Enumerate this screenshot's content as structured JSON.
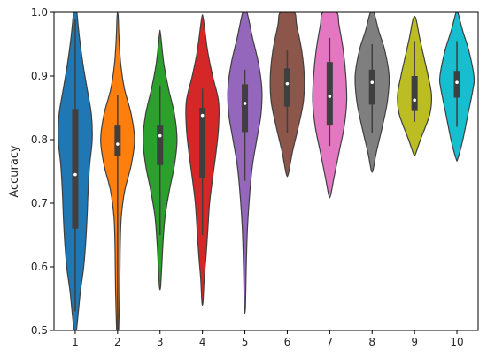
{
  "chart_data": {
    "type": "violin",
    "title": "",
    "xlabel": "",
    "ylabel": "Accuracy",
    "categories": [
      "1",
      "2",
      "3",
      "4",
      "5",
      "6",
      "7",
      "8",
      "9",
      "10"
    ],
    "ylim": [
      0.5,
      1.0
    ],
    "yticks": [
      "0.5",
      "0.6",
      "0.7",
      "0.8",
      "0.9",
      "1.0"
    ],
    "grid": false,
    "legend": "none",
    "series": [
      {
        "category": "1",
        "color": "#1f77b4",
        "median": 0.745,
        "q1": 0.66,
        "q3": 0.848,
        "whisker_low": 0.53,
        "whisker_high": 0.99,
        "density": [
          [
            0.49,
            0.03
          ],
          [
            0.52,
            0.15
          ],
          [
            0.56,
            0.3
          ],
          [
            0.6,
            0.5
          ],
          [
            0.64,
            0.62
          ],
          [
            0.68,
            0.7
          ],
          [
            0.72,
            0.76
          ],
          [
            0.76,
            0.85
          ],
          [
            0.8,
            1.0
          ],
          [
            0.84,
            0.95
          ],
          [
            0.88,
            0.7
          ],
          [
            0.92,
            0.45
          ],
          [
            0.96,
            0.25
          ],
          [
            1.0,
            0.1
          ],
          [
            1.02,
            0.03
          ]
        ]
      },
      {
        "category": "2",
        "color": "#ff7f0e",
        "median": 0.793,
        "q1": 0.775,
        "q3": 0.822,
        "whisker_low": 0.5,
        "whisker_high": 0.87,
        "density": [
          [
            0.48,
            0.03
          ],
          [
            0.52,
            0.08
          ],
          [
            0.56,
            0.12
          ],
          [
            0.6,
            0.14
          ],
          [
            0.64,
            0.16
          ],
          [
            0.68,
            0.22
          ],
          [
            0.72,
            0.42
          ],
          [
            0.76,
            0.8
          ],
          [
            0.8,
            1.0
          ],
          [
            0.84,
            0.8
          ],
          [
            0.88,
            0.4
          ],
          [
            0.92,
            0.18
          ],
          [
            0.96,
            0.08
          ],
          [
            0.995,
            0.03
          ]
        ]
      },
      {
        "category": "3",
        "color": "#2ca02c",
        "median": 0.806,
        "q1": 0.76,
        "q3": 0.822,
        "whisker_low": 0.65,
        "whisker_high": 0.885,
        "density": [
          [
            0.568,
            0.03
          ],
          [
            0.6,
            0.1
          ],
          [
            0.64,
            0.18
          ],
          [
            0.68,
            0.3
          ],
          [
            0.72,
            0.55
          ],
          [
            0.76,
            0.85
          ],
          [
            0.8,
            1.0
          ],
          [
            0.84,
            0.85
          ],
          [
            0.88,
            0.5
          ],
          [
            0.92,
            0.22
          ],
          [
            0.966,
            0.03
          ]
        ]
      },
      {
        "category": "4",
        "color": "#d62728",
        "median": 0.838,
        "q1": 0.74,
        "q3": 0.85,
        "whisker_low": 0.65,
        "whisker_high": 0.88,
        "density": [
          [
            0.544,
            0.03
          ],
          [
            0.58,
            0.1
          ],
          [
            0.62,
            0.22
          ],
          [
            0.66,
            0.32
          ],
          [
            0.7,
            0.42
          ],
          [
            0.74,
            0.6
          ],
          [
            0.78,
            0.8
          ],
          [
            0.82,
            0.95
          ],
          [
            0.86,
            0.95
          ],
          [
            0.9,
            0.6
          ],
          [
            0.94,
            0.3
          ],
          [
            0.99,
            0.05
          ]
        ]
      },
      {
        "category": "5",
        "color": "#9467bd",
        "median": 0.857,
        "q1": 0.812,
        "q3": 0.887,
        "whisker_low": 0.735,
        "whisker_high": 0.91,
        "density": [
          [
            0.535,
            0.03
          ],
          [
            0.6,
            0.08
          ],
          [
            0.66,
            0.15
          ],
          [
            0.72,
            0.3
          ],
          [
            0.76,
            0.45
          ],
          [
            0.8,
            0.7
          ],
          [
            0.84,
            0.95
          ],
          [
            0.88,
            1.0
          ],
          [
            0.92,
            0.8
          ],
          [
            0.96,
            0.45
          ],
          [
            1.0,
            0.12
          ]
        ]
      },
      {
        "category": "6",
        "color": "#8c564b",
        "median": 0.888,
        "q1": 0.852,
        "q3": 0.912,
        "whisker_low": 0.81,
        "whisker_high": 0.94,
        "density": [
          [
            0.746,
            0.06
          ],
          [
            0.78,
            0.3
          ],
          [
            0.82,
            0.65
          ],
          [
            0.86,
            0.95
          ],
          [
            0.9,
            1.0
          ],
          [
            0.94,
            0.85
          ],
          [
            0.98,
            0.55
          ],
          [
            1.0,
            0.4
          ]
        ]
      },
      {
        "category": "7",
        "color": "#e377c2",
        "median": 0.868,
        "q1": 0.822,
        "q3": 0.922,
        "whisker_low": 0.79,
        "whisker_high": 0.96,
        "density": [
          [
            0.712,
            0.05
          ],
          [
            0.74,
            0.25
          ],
          [
            0.78,
            0.55
          ],
          [
            0.82,
            0.85
          ],
          [
            0.86,
            1.0
          ],
          [
            0.9,
            0.95
          ],
          [
            0.94,
            0.8
          ],
          [
            0.98,
            0.55
          ],
          [
            1.0,
            0.4
          ]
        ]
      },
      {
        "category": "8",
        "color": "#7f7f7f",
        "median": 0.89,
        "q1": 0.855,
        "q3": 0.91,
        "whisker_low": 0.81,
        "whisker_high": 0.95,
        "density": [
          [
            0.752,
            0.05
          ],
          [
            0.78,
            0.25
          ],
          [
            0.82,
            0.6
          ],
          [
            0.86,
            0.9
          ],
          [
            0.9,
            1.0
          ],
          [
            0.94,
            0.75
          ],
          [
            0.97,
            0.4
          ],
          [
            1.0,
            0.1
          ]
        ]
      },
      {
        "category": "9",
        "color": "#bcbd22",
        "median": 0.862,
        "q1": 0.845,
        "q3": 0.9,
        "whisker_low": 0.828,
        "whisker_high": 0.955,
        "density": [
          [
            0.777,
            0.05
          ],
          [
            0.8,
            0.35
          ],
          [
            0.84,
            0.9
          ],
          [
            0.87,
            1.0
          ],
          [
            0.9,
            0.8
          ],
          [
            0.93,
            0.55
          ],
          [
            0.96,
            0.3
          ],
          [
            0.99,
            0.08
          ]
        ]
      },
      {
        "category": "10",
        "color": "#17becf",
        "median": 0.89,
        "q1": 0.866,
        "q3": 0.908,
        "whisker_low": 0.82,
        "whisker_high": 0.955,
        "density": [
          [
            0.77,
            0.05
          ],
          [
            0.8,
            0.35
          ],
          [
            0.84,
            0.65
          ],
          [
            0.88,
            0.95
          ],
          [
            0.9,
            1.0
          ],
          [
            0.94,
            0.7
          ],
          [
            0.97,
            0.35
          ],
          [
            1.0,
            0.05
          ]
        ]
      }
    ]
  }
}
